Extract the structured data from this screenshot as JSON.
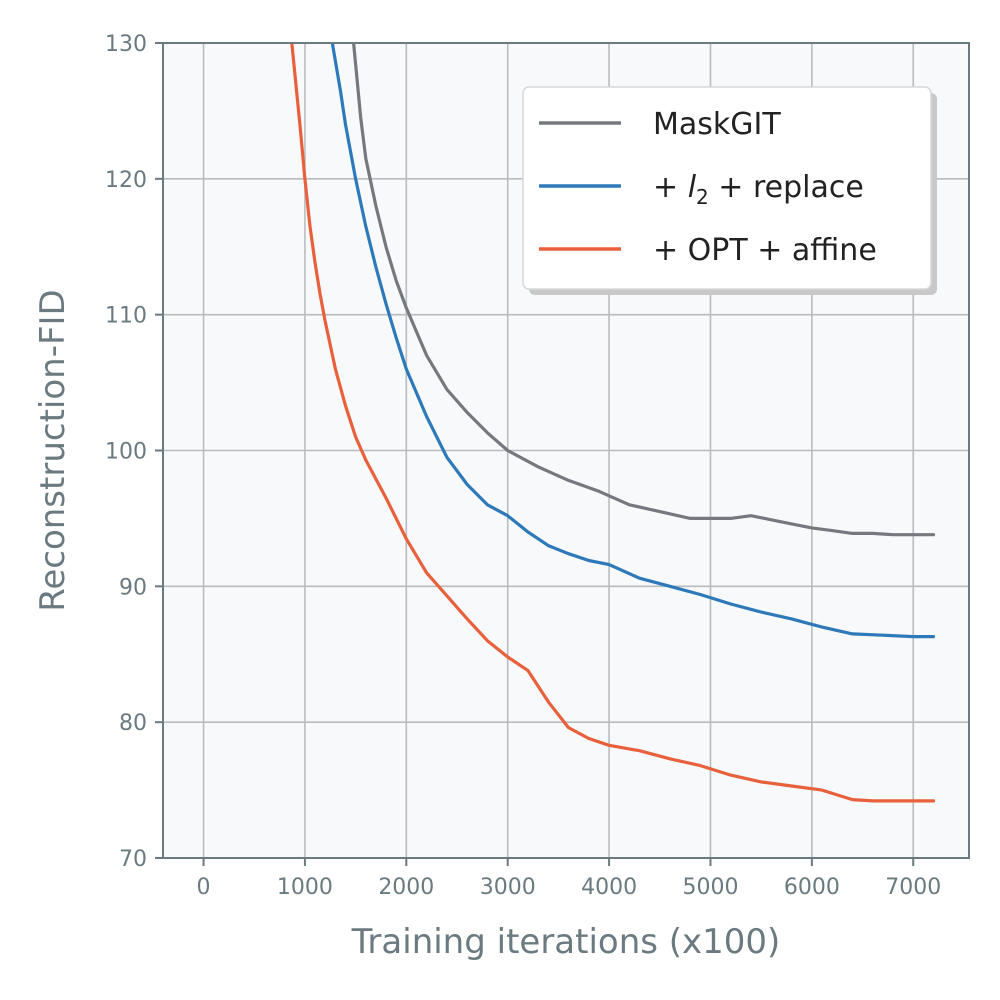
{
  "chart_data": {
    "type": "line",
    "xlabel": "Training iterations (x100)",
    "ylabel": "Reconstruction-FID",
    "xlim": [
      -400,
      7550
    ],
    "ylim": [
      70,
      130
    ],
    "xticks": [
      0,
      1000,
      2000,
      3000,
      4000,
      5000,
      6000,
      7000
    ],
    "yticks": [
      70,
      80,
      90,
      100,
      110,
      120,
      130
    ],
    "grid": true,
    "legend_position": "top-right",
    "colors": {
      "plot_background": "#f7f9fa",
      "grid": "#b9bcbf",
      "spine": "#6b7a80",
      "text": "#6b7a80"
    },
    "series": [
      {
        "name": "MaskGIT",
        "color": "#75797d",
        "x": [
          1480,
          1550,
          1600,
          1700,
          1800,
          1900,
          2000,
          2200,
          2400,
          2600,
          2800,
          3000,
          3300,
          3600,
          3900,
          4200,
          4500,
          4800,
          5000,
          5200,
          5400,
          5600,
          5800,
          6000,
          6200,
          6400,
          6600,
          6800,
          7000,
          7200
        ],
        "y": [
          130,
          124.5,
          121.5,
          118,
          115,
          112.5,
          110.5,
          107,
          104.5,
          102.8,
          101.3,
          100.0,
          98.8,
          97.8,
          97.0,
          96.0,
          95.5,
          95.0,
          95.0,
          95.0,
          95.2,
          94.9,
          94.6,
          94.3,
          94.1,
          93.9,
          93.9,
          93.8,
          93.8,
          93.8
        ]
      },
      {
        "name": "+ l2 + replace",
        "name_parts": [
          "+ ",
          "l",
          "2",
          " + replace"
        ],
        "color": "#2e79ba",
        "x": [
          1270,
          1350,
          1400,
          1500,
          1600,
          1700,
          1800,
          1900,
          2000,
          2200,
          2400,
          2600,
          2800,
          3000,
          3200,
          3400,
          3600,
          3800,
          4000,
          4300,
          4600,
          4900,
          5200,
          5500,
          5800,
          6100,
          6400,
          6700,
          7000,
          7200
        ],
        "y": [
          130,
          126.5,
          124.0,
          120.0,
          116.5,
          113.5,
          110.8,
          108.3,
          106.0,
          102.5,
          99.5,
          97.5,
          96.0,
          95.2,
          94.0,
          93.0,
          92.4,
          91.9,
          91.6,
          90.6,
          90.0,
          89.4,
          88.7,
          88.1,
          87.6,
          87.0,
          86.5,
          86.4,
          86.3,
          86.3
        ]
      },
      {
        "name": "+ OPT + affine",
        "color": "#e8603c",
        "x": [
          870,
          950,
          1000,
          1050,
          1100,
          1150,
          1200,
          1300,
          1400,
          1500,
          1600,
          1800,
          2000,
          2200,
          2400,
          2600,
          2800,
          3000,
          3200,
          3400,
          3600,
          3800,
          4000,
          4300,
          4600,
          4900,
          5200,
          5500,
          5800,
          6100,
          6400,
          6600,
          6800,
          7000,
          7200
        ],
        "y": [
          130,
          124.0,
          120.0,
          116.5,
          113.8,
          111.5,
          109.5,
          106.0,
          103.3,
          101.0,
          99.3,
          96.5,
          93.5,
          91.0,
          89.3,
          87.6,
          86.0,
          84.8,
          83.8,
          81.5,
          79.6,
          78.8,
          78.3,
          77.9,
          77.3,
          76.8,
          76.1,
          75.6,
          75.3,
          75.0,
          74.3,
          74.2,
          74.2,
          74.2,
          74.2
        ]
      }
    ]
  }
}
